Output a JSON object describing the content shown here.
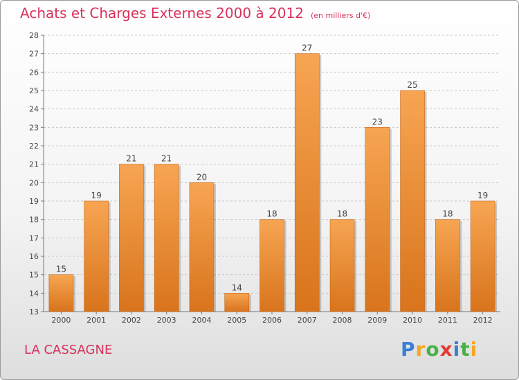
{
  "header": {
    "title": "Achats et Charges Externes 2000 à 2012",
    "subtitle": "(en milliers d'€)"
  },
  "footer": {
    "town": "LA CASSAGNE",
    "brand": "Proxiti",
    "brand_letters": [
      "P",
      "r",
      "o",
      "x",
      "i",
      "t",
      "i"
    ],
    "brand_colors": [
      "#3a7fd5",
      "#f5a623",
      "#49b048",
      "#e53935",
      "#3a7fd5",
      "#49b048",
      "#f5a623"
    ]
  },
  "chart_data": {
    "type": "bar",
    "title": "Achats et Charges Externes 2000 à 2012",
    "subtitle": "(en milliers d'€)",
    "categories": [
      "2000",
      "2001",
      "2002",
      "2003",
      "2004",
      "2005",
      "2006",
      "2007",
      "2008",
      "2009",
      "2010",
      "2011",
      "2012"
    ],
    "values": [
      15,
      19,
      21,
      21,
      20,
      14,
      18,
      27,
      18,
      23,
      25,
      18,
      19
    ],
    "ylim": [
      13,
      28
    ],
    "yticks": [
      13,
      14,
      15,
      16,
      17,
      18,
      19,
      20,
      21,
      22,
      23,
      24,
      25,
      26,
      27,
      28
    ],
    "grid": true,
    "bar_color_top": "#f7a552",
    "bar_color_bottom": "#d8741c",
    "accent_color": "#d8325a"
  }
}
